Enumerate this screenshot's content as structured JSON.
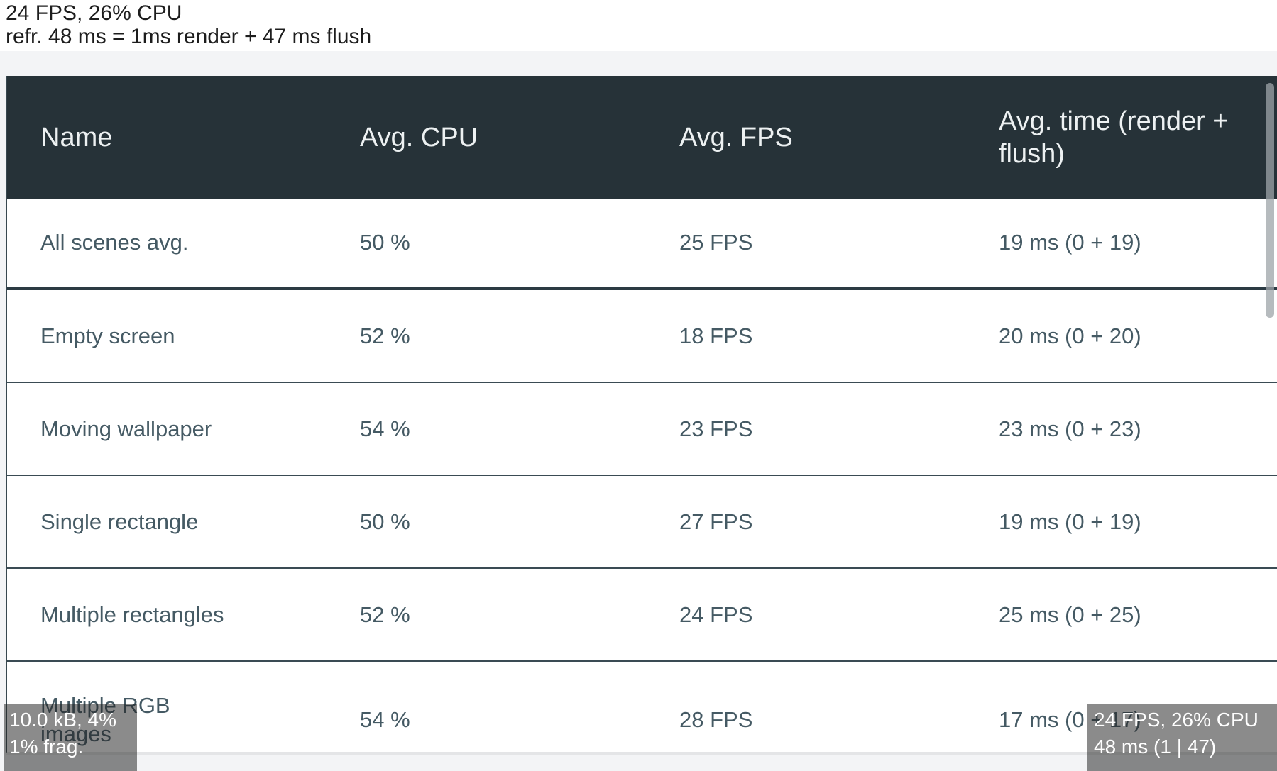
{
  "top_label": {
    "line1": "24 FPS, 26% CPU",
    "line2": "refr. 48 ms = 1ms render + 47 ms flush"
  },
  "table": {
    "columns": [
      "Name",
      "Avg. CPU",
      "Avg. FPS",
      "Avg. time (render + flush)"
    ],
    "rows": [
      {
        "name": "All scenes avg.",
        "cpu": "50 %",
        "fps": "25 FPS",
        "time": "19 ms (0 + 19)"
      },
      {
        "name": "Empty screen",
        "cpu": "52 %",
        "fps": "18 FPS",
        "time": "20 ms (0 + 20)"
      },
      {
        "name": "Moving wallpaper",
        "cpu": "54 %",
        "fps": "23 FPS",
        "time": "23 ms (0 + 23)"
      },
      {
        "name": "Single rectangle",
        "cpu": "50 %",
        "fps": "27 FPS",
        "time": "19 ms (0 + 19)"
      },
      {
        "name": "Multiple rectangles",
        "cpu": "52 %",
        "fps": "24 FPS",
        "time": "25 ms (0 + 25)"
      },
      {
        "name": "Multiple RGB\nimages",
        "cpu": "54 %",
        "fps": "28 FPS",
        "time": "17 ms (0 + 17)"
      }
    ]
  },
  "overlays": {
    "memory_monitor": {
      "line1": "10.0 kB, 4%",
      "line2": "1% frag."
    },
    "performance_monitor": {
      "line1": "24 FPS, 26% CPU",
      "line2": "48 ms (1 | 47)"
    }
  },
  "colors": {
    "header_bg": "#263238",
    "header_text": "#edf1f2",
    "row_text": "#455a64",
    "divider": "#3a4b54",
    "summary_divider": "#2c3b43",
    "band_bg": "#f3f4f6",
    "overlay_bg_tint": "#202020",
    "overlay_text": "#ffffff",
    "top_label_text": "#1d1d1d",
    "scrollbar_thumb": "#9ea4a8"
  }
}
